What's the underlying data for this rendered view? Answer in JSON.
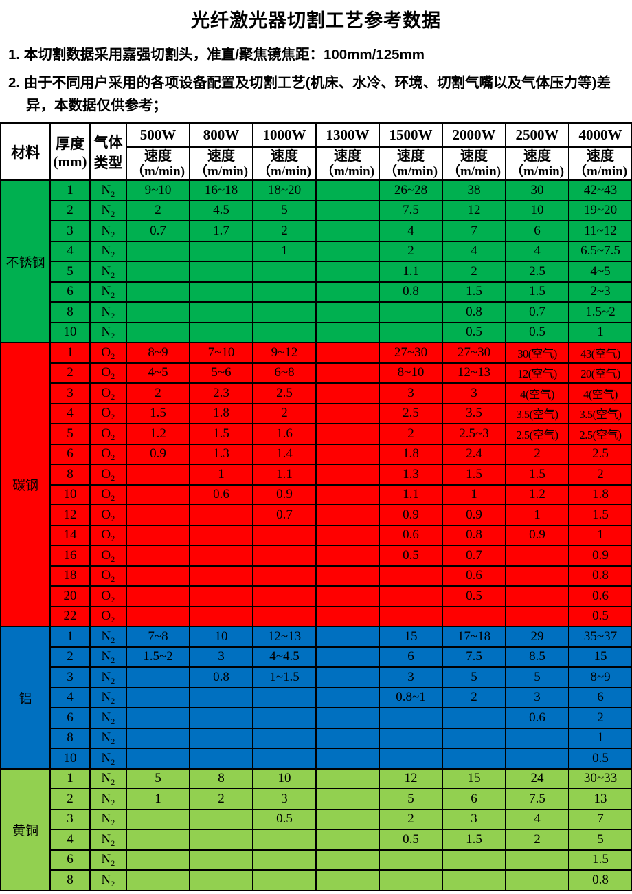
{
  "title": "光纤激光器切割工艺参考数据",
  "notes": [
    "1. 本切割数据采用嘉强切割头，准直/聚焦镜焦距：100mm/125mm",
    "2. 由于不同用户采用的各项设备配置及切割工艺(机床、水冷、环境、切割气嘴以及气体压力等)差异，本数据仅供参考；"
  ],
  "table": {
    "header": {
      "material": "材料",
      "thickness_line1": "厚度",
      "thickness_line2": "(mm)",
      "gas_line1": "气体",
      "gas_line2": "类型",
      "powers": [
        "500W",
        "800W",
        "1000W",
        "1300W",
        "1500W",
        "2000W",
        "2500W",
        "4000W"
      ],
      "speed_label": "速度",
      "speed_unit": "（m/min)"
    },
    "sections": [
      {
        "material": "不锈钢",
        "color": "#00B050",
        "gas": "N₂",
        "rows": [
          {
            "thickness": "1",
            "speeds": [
              "9~10",
              "16~18",
              "18~20",
              "",
              "26~28",
              "38",
              "30",
              "42~43"
            ]
          },
          {
            "thickness": "2",
            "speeds": [
              "2",
              "4.5",
              "5",
              "",
              "7.5",
              "12",
              "10",
              "19~20"
            ]
          },
          {
            "thickness": "3",
            "speeds": [
              "0.7",
              "1.7",
              "2",
              "",
              "4",
              "7",
              "6",
              "11~12"
            ]
          },
          {
            "thickness": "4",
            "speeds": [
              "",
              "",
              "1",
              "",
              "2",
              "4",
              "4",
              "6.5~7.5"
            ]
          },
          {
            "thickness": "5",
            "speeds": [
              "",
              "",
              "",
              "",
              "1.1",
              "2",
              "2.5",
              "4~5"
            ]
          },
          {
            "thickness": "6",
            "speeds": [
              "",
              "",
              "",
              "",
              "0.8",
              "1.5",
              "1.5",
              "2~3"
            ]
          },
          {
            "thickness": "8",
            "speeds": [
              "",
              "",
              "",
              "",
              "",
              "0.8",
              "0.7",
              "1.5~2"
            ]
          },
          {
            "thickness": "10",
            "speeds": [
              "",
              "",
              "",
              "",
              "",
              "0.5",
              "0.5",
              "1"
            ]
          }
        ]
      },
      {
        "material": "碳钢",
        "color": "#FF0000",
        "gas": "O₂",
        "rows": [
          {
            "thickness": "1",
            "speeds": [
              "8~9",
              "7~10",
              "9~12",
              "",
              "27~30",
              "27~30",
              "30(空气)",
              "43(空气)"
            ]
          },
          {
            "thickness": "2",
            "speeds": [
              "4~5",
              "5~6",
              "6~8",
              "",
              "8~10",
              "12~13",
              "12(空气)",
              "20(空气)"
            ]
          },
          {
            "thickness": "3",
            "speeds": [
              "2",
              "2.3",
              "2.5",
              "",
              "3",
              "3",
              "4(空气)",
              "4(空气)"
            ]
          },
          {
            "thickness": "4",
            "speeds": [
              "1.5",
              "1.8",
              "2",
              "",
              "2.5",
              "3.5",
              "3.5(空气)",
              "3.5(空气)"
            ]
          },
          {
            "thickness": "5",
            "speeds": [
              "1.2",
              "1.5",
              "1.6",
              "",
              "2",
              "2.5~3",
              "2.5(空气)",
              "2.5(空气)"
            ]
          },
          {
            "thickness": "6",
            "speeds": [
              "0.9",
              "1.3",
              "1.4",
              "",
              "1.8",
              "2.4",
              "2",
              "2.5"
            ]
          },
          {
            "thickness": "8",
            "speeds": [
              "",
              "1",
              "1.1",
              "",
              "1.3",
              "1.5",
              "1.5",
              "2"
            ]
          },
          {
            "thickness": "10",
            "speeds": [
              "",
              "0.6",
              "0.9",
              "",
              "1.1",
              "1",
              "1.2",
              "1.8"
            ]
          },
          {
            "thickness": "12",
            "speeds": [
              "",
              "",
              "0.7",
              "",
              "0.9",
              "0.9",
              "1",
              "1.5"
            ]
          },
          {
            "thickness": "14",
            "speeds": [
              "",
              "",
              "",
              "",
              "0.6",
              "0.8",
              "0.9",
              "1"
            ]
          },
          {
            "thickness": "16",
            "speeds": [
              "",
              "",
              "",
              "",
              "0.5",
              "0.7",
              "",
              "0.9"
            ]
          },
          {
            "thickness": "18",
            "speeds": [
              "",
              "",
              "",
              "",
              "",
              "0.6",
              "",
              "0.8"
            ]
          },
          {
            "thickness": "20",
            "speeds": [
              "",
              "",
              "",
              "",
              "",
              "0.5",
              "",
              "0.6"
            ]
          },
          {
            "thickness": "22",
            "speeds": [
              "",
              "",
              "",
              "",
              "",
              "",
              "",
              "0.5"
            ]
          }
        ]
      },
      {
        "material": "铝",
        "color": "#0070C0",
        "gas": "N₂",
        "rows": [
          {
            "thickness": "1",
            "speeds": [
              "7~8",
              "10",
              "12~13",
              "",
              "15",
              "17~18",
              "29",
              "35~37"
            ]
          },
          {
            "thickness": "2",
            "speeds": [
              "1.5~2",
              "3",
              "4~4.5",
              "",
              "6",
              "7.5",
              "8.5",
              "15"
            ]
          },
          {
            "thickness": "3",
            "speeds": [
              "",
              "0.8",
              "1~1.5",
              "",
              "3",
              "5",
              "5",
              "8~9"
            ]
          },
          {
            "thickness": "4",
            "speeds": [
              "",
              "",
              "",
              "",
              "0.8~1",
              "2",
              "3",
              "6"
            ]
          },
          {
            "thickness": "6",
            "speeds": [
              "",
              "",
              "",
              "",
              "",
              "",
              "0.6",
              "2"
            ]
          },
          {
            "thickness": "8",
            "speeds": [
              "",
              "",
              "",
              "",
              "",
              "",
              "",
              "1"
            ]
          },
          {
            "thickness": "10",
            "speeds": [
              "",
              "",
              "",
              "",
              "",
              "",
              "",
              "0.5"
            ]
          }
        ]
      },
      {
        "material": "黄铜",
        "color": "#92D050",
        "gas": "N₂",
        "rows": [
          {
            "thickness": "1",
            "speeds": [
              "5",
              "8",
              "10",
              "",
              "12",
              "15",
              "24",
              "30~33"
            ]
          },
          {
            "thickness": "2",
            "speeds": [
              "1",
              "2",
              "3",
              "",
              "5",
              "6",
              "7.5",
              "13"
            ]
          },
          {
            "thickness": "3",
            "speeds": [
              "",
              "",
              "0.5",
              "",
              "2",
              "3",
              "4",
              "7"
            ]
          },
          {
            "thickness": "4",
            "speeds": [
              "",
              "",
              "",
              "",
              "0.5",
              "1.5",
              "2",
              "5"
            ]
          },
          {
            "thickness": "6",
            "speeds": [
              "",
              "",
              "",
              "",
              "",
              "",
              "",
              "1.5"
            ]
          },
          {
            "thickness": "8",
            "speeds": [
              "",
              "",
              "",
              "",
              "",
              "",
              "",
              "0.8"
            ]
          }
        ]
      }
    ]
  }
}
